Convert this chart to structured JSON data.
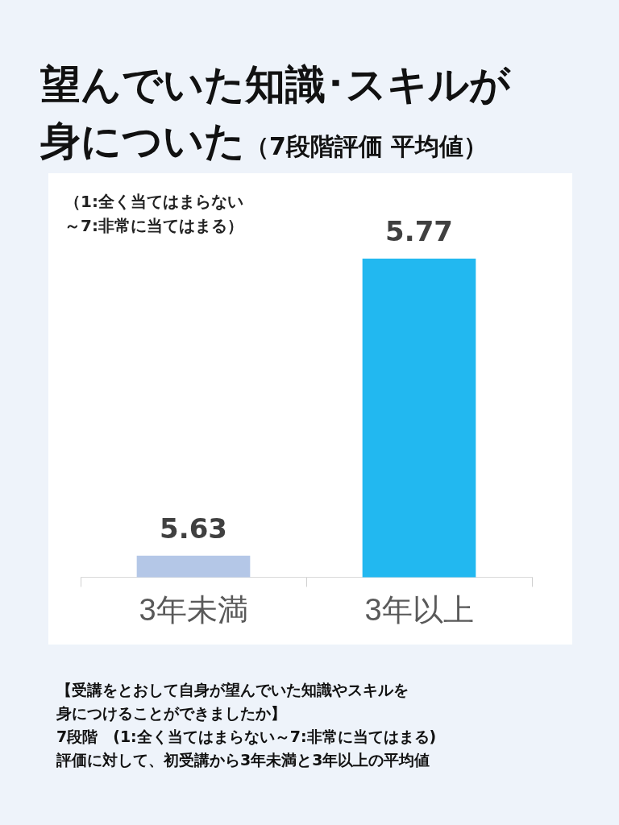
{
  "chart_data": {
    "type": "bar",
    "title": "望んでいた知識･スキルが身についた",
    "subtitle": "（7段階評価 平均値）",
    "categories": [
      "3年未満",
      "3年以上"
    ],
    "values": [
      5.63,
      5.77
    ],
    "colors": [
      "#b4c7e7",
      "#22b8f0"
    ],
    "tick_labels": "x",
    "grid": false,
    "legend": false,
    "data_labels": true,
    "annotations": [
      "（1:全く当てはまらない～7:非常に当てはまる）",
      "【受講をとおして自身が望んでいた知識やスキルを身につけることができましたか】",
      "7段階　(1:全く当てはまらない～7:非常に当てはまる)",
      "評価に対して、初受講から3年未満と3年以上の平均値"
    ]
  }
}
